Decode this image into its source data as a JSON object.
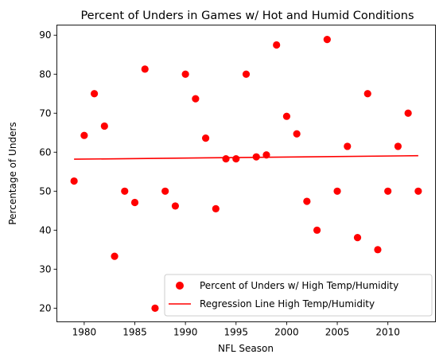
{
  "chart_data": {
    "type": "scatter",
    "title": "Percent of Unders in Games w/ Hot and Humid Conditions",
    "xlabel": "NFL Season",
    "ylabel": "Percentage of Unders",
    "xlim": [
      1977.3,
      2014.7
    ],
    "ylim": [
      16.5,
      92.6
    ],
    "xticks": [
      1980,
      1985,
      1990,
      1995,
      2000,
      2005,
      2010
    ],
    "yticks": [
      20,
      30,
      40,
      50,
      60,
      70,
      80,
      90
    ],
    "grid": false,
    "legend_placement": "lower-right",
    "series": [
      {
        "name": "Percent of Unders w/ High Temp/Humidity",
        "kind": "scatter",
        "color": "#ff0000",
        "x": [
          1979,
          1980,
          1981,
          1982,
          1983,
          1984,
          1985,
          1986,
          1987,
          1988,
          1989,
          1990,
          1991,
          1992,
          1993,
          1994,
          1995,
          1996,
          1997,
          1998,
          1999,
          2000,
          2001,
          2002,
          2003,
          2004,
          2005,
          2006,
          2007,
          2008,
          2009,
          2010,
          2011,
          2012,
          2013
        ],
        "y": [
          52.6,
          64.3,
          75.0,
          66.7,
          33.3,
          50.0,
          47.1,
          81.3,
          20.0,
          50.0,
          46.2,
          80.0,
          73.7,
          63.6,
          45.5,
          58.3,
          58.3,
          80.0,
          58.8,
          59.3,
          87.5,
          69.2,
          64.7,
          47.4,
          40.0,
          88.9,
          50.0,
          61.5,
          38.1,
          75.0,
          35.0,
          50.0,
          61.5,
          70.0,
          50.0
        ]
      },
      {
        "name": "Regression Line High Temp/Humidity",
        "kind": "line",
        "color": "#ff0000",
        "x": [
          1979,
          2013
        ],
        "y": [
          58.2,
          59.1
        ]
      }
    ]
  }
}
